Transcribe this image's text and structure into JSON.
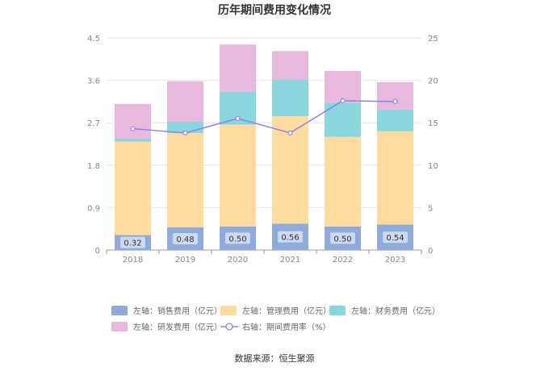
{
  "chart_data": {
    "type": "bar",
    "title": "历年期间费用变化情况",
    "categories": [
      "2018",
      "2019",
      "2020",
      "2021",
      "2022",
      "2023"
    ],
    "y_left": {
      "min": 0,
      "max": 4.5,
      "ticks": [
        "0",
        "0.9",
        "1.8",
        "2.7",
        "3.6",
        "4.5"
      ]
    },
    "y_right": {
      "min": 0,
      "max": 25,
      "ticks": [
        "0",
        "5",
        "10",
        "15",
        "20",
        "25"
      ]
    },
    "series": [
      {
        "name": "左轴：销售费用（亿元）",
        "type": "stacked-bar",
        "axis": "left",
        "color": "#8eabdc",
        "values": [
          0.32,
          0.48,
          0.5,
          0.56,
          0.5,
          0.54
        ],
        "labels": [
          "0.32",
          "0.48",
          "0.50",
          "0.56",
          "0.50",
          "0.54"
        ]
      },
      {
        "name": "左轴：管理费用（亿元）",
        "type": "stacked-bar",
        "axis": "left",
        "color": "#ffdba0",
        "values": [
          1.98,
          2.0,
          2.16,
          2.28,
          1.9,
          1.98
        ]
      },
      {
        "name": "左轴：财务费用（亿元）",
        "type": "stacked-bar",
        "axis": "left",
        "color": "#89d7dc",
        "values": [
          0.06,
          0.24,
          0.7,
          0.78,
          0.72,
          0.46
        ]
      },
      {
        "name": "左轴：研发费用（亿元）",
        "type": "stacked-bar",
        "axis": "left",
        "color": "#e8b9dc",
        "values": [
          0.74,
          0.86,
          1.0,
          0.6,
          0.68,
          0.58
        ]
      },
      {
        "name": "右轴：期间费用率（%）",
        "type": "line",
        "axis": "right",
        "color": "#8a85e6",
        "values": [
          14.3,
          13.8,
          15.5,
          13.8,
          17.6,
          17.5
        ]
      }
    ],
    "legend_position": "bottom"
  },
  "source_text": "数据来源：恒生聚源"
}
